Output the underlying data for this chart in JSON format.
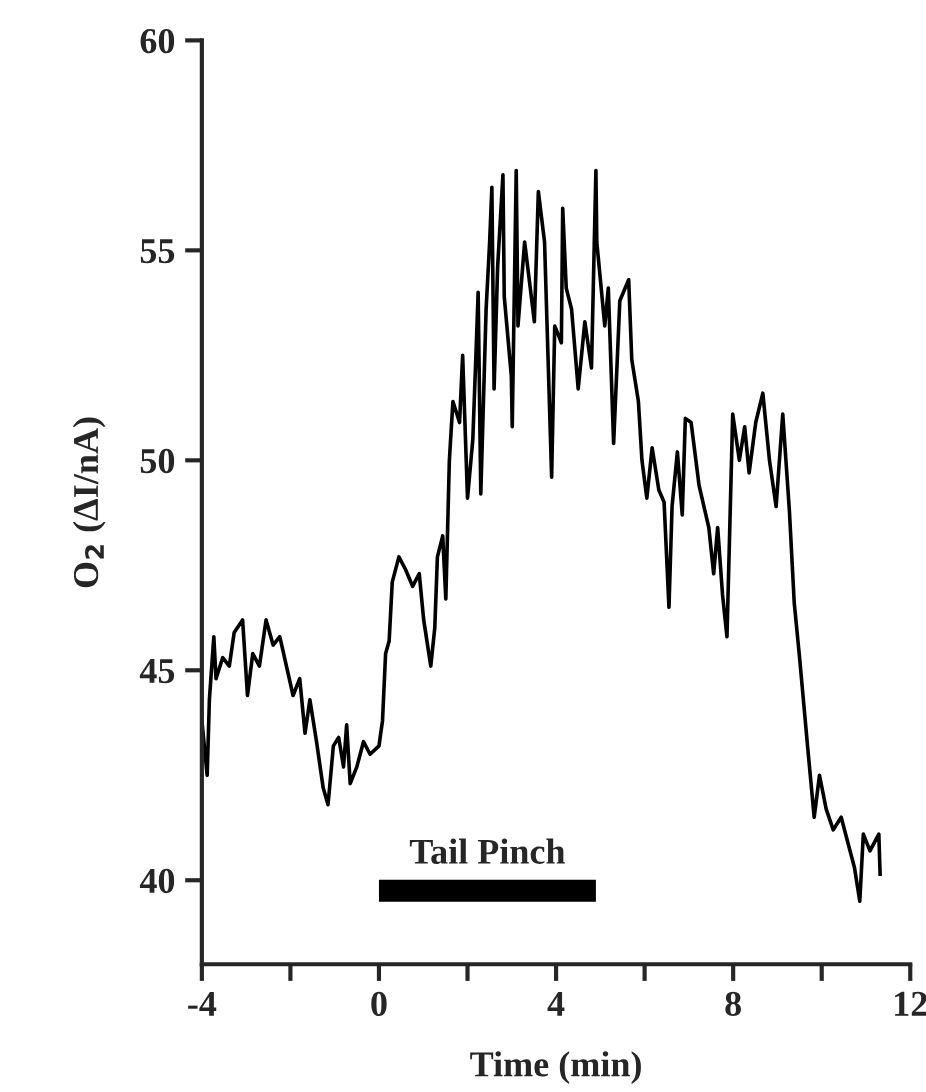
{
  "chart_data": {
    "type": "line",
    "xlabel": "Time (min)",
    "ylabel": "O$_{2}$ (ΔI/nA)",
    "xlim": [
      -4,
      12
    ],
    "ylim": [
      38,
      60
    ],
    "xticks": [
      -4,
      {
        "value": -2,
        "label": null
      },
      0,
      {
        "value": 2,
        "label": null
      },
      4,
      {
        "value": 6,
        "label": null
      },
      8,
      {
        "value": 10,
        "label": null
      },
      12
    ],
    "yticks": [
      40,
      45,
      50,
      55,
      60
    ],
    "grid": false,
    "legend": false,
    "annotations": [
      {
        "text": "Tail Pinch",
        "x": 2.45,
        "y": 39.75
      }
    ],
    "series": [
      {
        "color": "#000000",
        "x": [
          0,
          4.9
        ],
        "values": [
          39.75,
          39.75
        ]
      },
      {
        "color": "#000000",
        "x": [
          -4.0,
          -3.88,
          -3.83,
          -3.73,
          -3.68,
          -3.53,
          -3.38,
          -3.27,
          -3.08,
          -2.97,
          -2.85,
          -2.7,
          -2.55,
          -2.39,
          -2.24,
          -2.09,
          -1.94,
          -1.79,
          -1.67,
          -1.56,
          -1.41,
          -1.26,
          -1.15,
          -1.03,
          -0.91,
          -0.8,
          -0.73,
          -0.65,
          -0.5,
          -0.35,
          -0.2,
          0.0,
          0.08,
          0.15,
          0.23,
          0.3,
          0.45,
          0.6,
          0.76,
          0.91,
          1.01,
          1.17,
          1.26,
          1.32,
          1.44,
          1.51,
          1.59,
          1.67,
          1.82,
          1.89,
          2.0,
          2.12,
          2.2,
          2.24,
          2.3,
          2.42,
          2.5,
          2.55,
          2.6,
          2.68,
          2.8,
          2.83,
          2.99,
          3.01,
          3.1,
          3.14,
          3.29,
          3.51,
          3.6,
          3.74,
          3.9,
          3.97,
          4.12,
          4.15,
          4.23,
          4.35,
          4.5,
          4.65,
          4.8,
          4.9,
          4.92,
          5.1,
          5.18,
          5.3,
          5.44,
          5.64,
          5.71,
          5.86,
          5.94,
          6.05,
          6.17,
          6.32,
          6.44,
          6.55,
          6.62,
          6.74,
          6.85,
          6.92,
          7.05,
          7.23,
          7.45,
          7.56,
          7.65,
          7.76,
          7.86,
          7.99,
          8.14,
          8.26,
          8.36,
          8.51,
          8.67,
          8.82,
          8.97,
          9.12,
          9.27,
          9.38,
          9.5,
          9.68,
          9.83,
          9.95,
          10.1,
          10.26,
          10.44,
          10.59,
          10.74,
          10.86,
          10.94,
          11.09,
          11.29,
          11.32
        ],
        "values": [
          43.8,
          42.5,
          44.3,
          45.8,
          44.8,
          45.3,
          45.1,
          45.9,
          46.2,
          44.4,
          45.4,
          45.1,
          46.2,
          45.6,
          45.8,
          45.1,
          44.4,
          44.8,
          43.5,
          44.3,
          43.3,
          42.2,
          41.8,
          43.2,
          43.4,
          42.7,
          43.7,
          42.3,
          42.7,
          43.3,
          43.0,
          43.2,
          43.8,
          45.4,
          45.7,
          47.1,
          47.7,
          47.4,
          47.0,
          47.3,
          46.2,
          45.1,
          46.0,
          47.7,
          48.2,
          46.7,
          50.0,
          51.4,
          50.9,
          52.5,
          49.1,
          50.5,
          52.8,
          54.0,
          49.2,
          53.6,
          55.2,
          56.5,
          51.7,
          54.6,
          56.8,
          53.9,
          52.0,
          50.8,
          56.9,
          53.2,
          55.2,
          53.3,
          56.4,
          55.2,
          49.6,
          53.2,
          52.8,
          56.0,
          54.1,
          53.6,
          51.7,
          53.3,
          52.2,
          56.9,
          55.2,
          53.2,
          54.1,
          50.4,
          53.8,
          54.3,
          52.4,
          51.4,
          50.0,
          49.1,
          50.3,
          49.3,
          49.0,
          46.5,
          48.9,
          50.2,
          48.7,
          51.0,
          50.9,
          49.4,
          48.4,
          47.3,
          48.4,
          46.8,
          45.8,
          51.1,
          50.0,
          50.8,
          49.7,
          50.9,
          51.6,
          50.0,
          48.9,
          51.1,
          48.8,
          46.6,
          45.3,
          43.2,
          41.5,
          42.5,
          41.7,
          41.2,
          41.5,
          40.9,
          40.3,
          39.5,
          41.1,
          40.7,
          41.1,
          40.1
        ]
      }
    ]
  }
}
